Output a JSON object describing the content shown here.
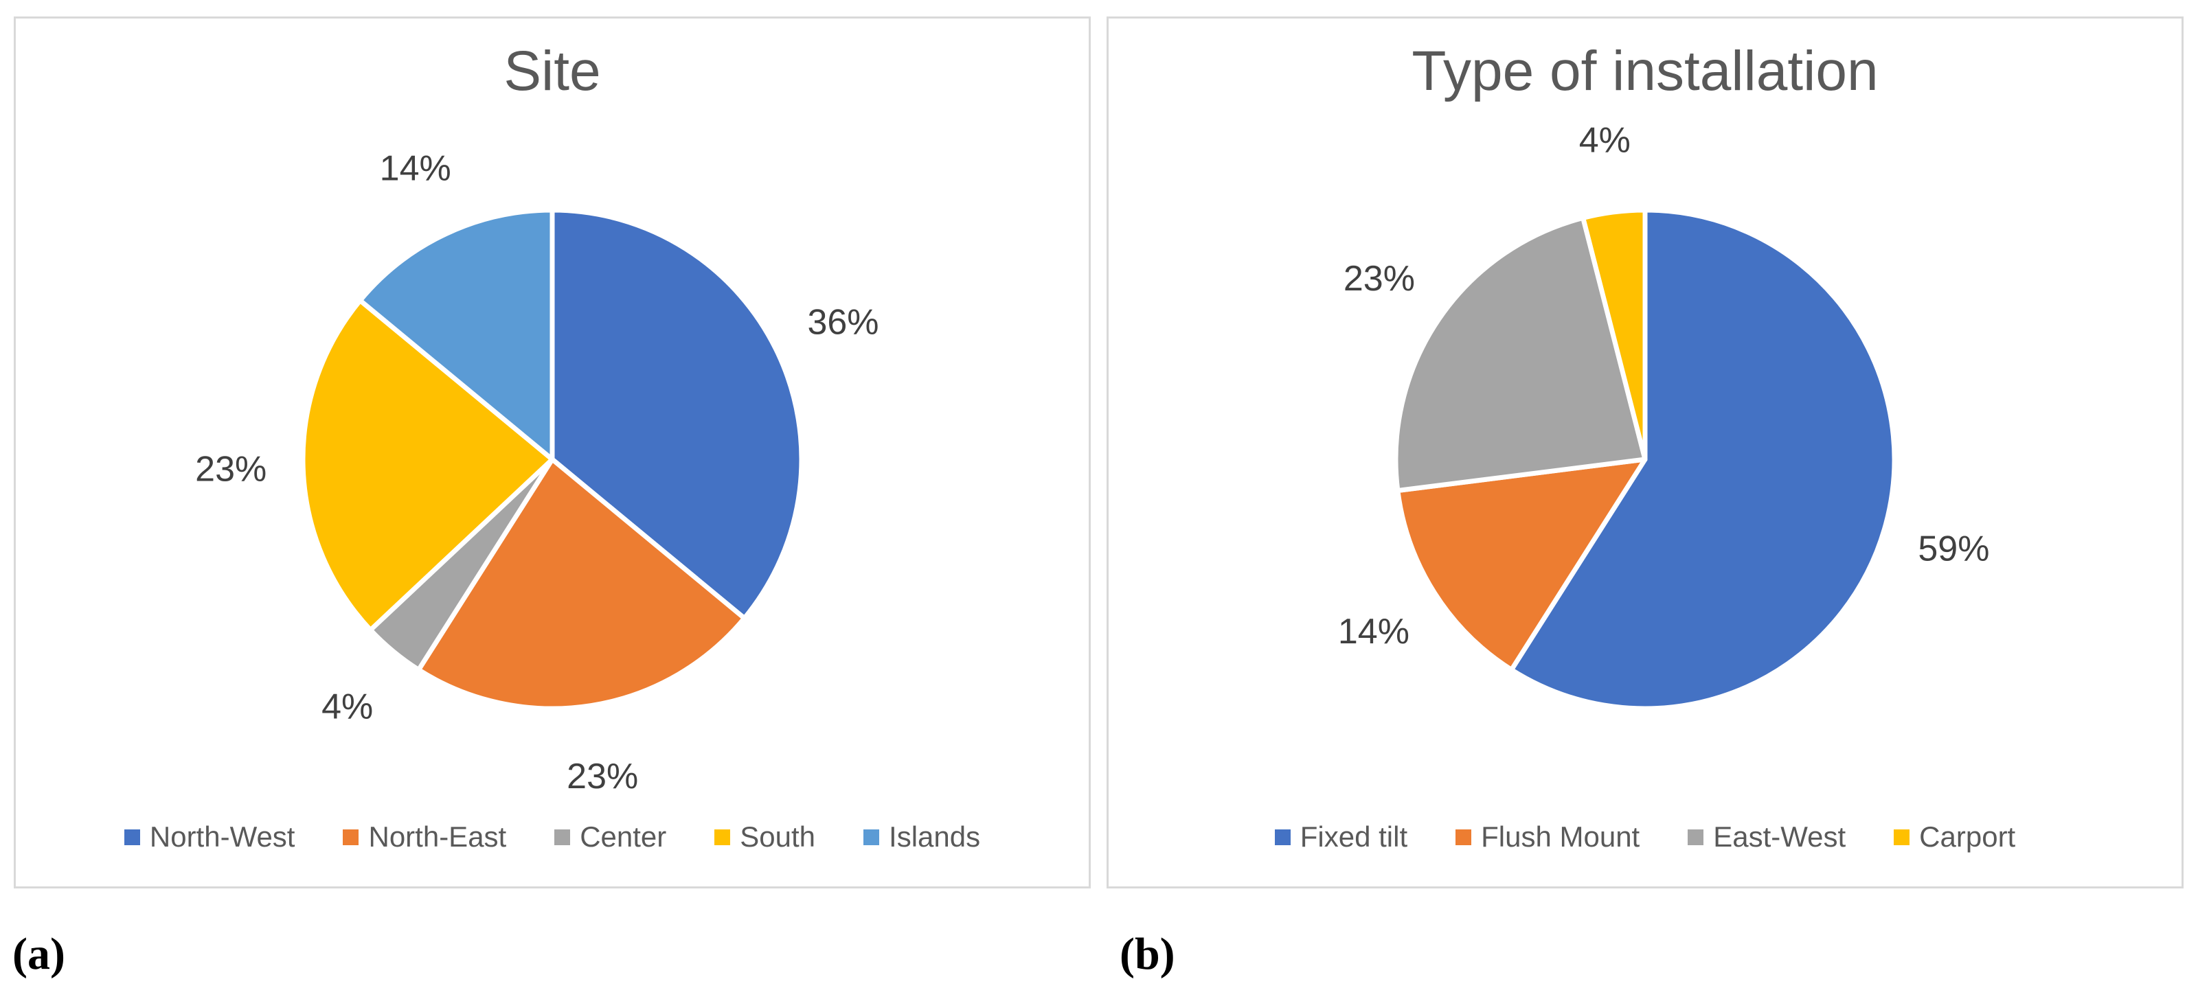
{
  "figure": {
    "caption_a": "(a)",
    "caption_b": "(b)"
  },
  "colors": {
    "series_blue": "#4472C4",
    "series_orange": "#ED7D31",
    "series_gray": "#A5A5A5",
    "series_yellow": "#FFC000",
    "series_light_blue": "#5B9BD5",
    "title_text": "#595959",
    "data_label_text": "#404040",
    "legend_text": "#595959",
    "panel_border": "#D9D9D9",
    "slice_separator": "#FFFFFF"
  },
  "chart_data": [
    {
      "type": "pie",
      "title": "Site",
      "panel": "a",
      "start_angle_deg": 0,
      "direction": "clockwise",
      "legend_position": "bottom",
      "grid": false,
      "categories": [
        "North-West",
        "North-East",
        "Center",
        "South",
        "Islands"
      ],
      "values": [
        36,
        23,
        4,
        23,
        14
      ],
      "data_labels": [
        "36%",
        "23%",
        "4%",
        "23%",
        "14%"
      ],
      "slice_colors": [
        "#4472C4",
        "#ED7D31",
        "#A5A5A5",
        "#FFC000",
        "#5B9BD5"
      ]
    },
    {
      "type": "pie",
      "title": "Type of installation",
      "panel": "b",
      "start_angle_deg": 0,
      "direction": "clockwise",
      "legend_position": "bottom",
      "grid": false,
      "categories": [
        "Fixed tilt",
        "Flush Mount",
        "East-West",
        "Carport"
      ],
      "values": [
        59,
        14,
        23,
        4
      ],
      "data_labels": [
        "59%",
        "14%",
        "23%",
        "4%"
      ],
      "slice_colors": [
        "#4472C4",
        "#ED7D31",
        "#A5A5A5",
        "#FFC000"
      ]
    }
  ]
}
